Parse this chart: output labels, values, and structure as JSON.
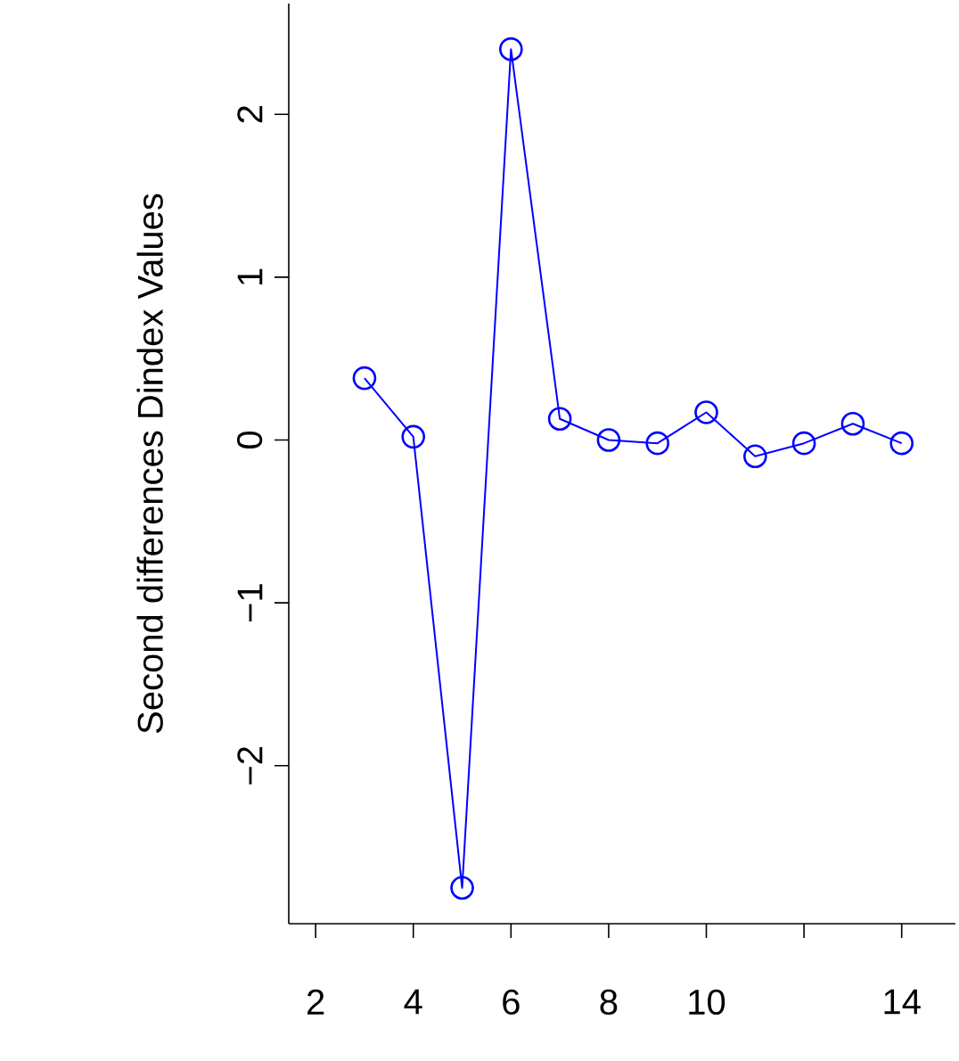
{
  "chart_data": {
    "type": "line",
    "ylabel": "Second differences Dindex Values",
    "x": [
      3,
      4,
      5,
      6,
      7,
      8,
      9,
      10,
      11,
      12,
      13,
      14
    ],
    "series": [
      {
        "color": "#0000ff",
        "values": [
          0.38,
          0.02,
          -2.75,
          2.4,
          0.13,
          0.0,
          -0.02,
          0.17,
          -0.1,
          -0.02,
          0.1,
          -0.02
        ]
      }
    ],
    "xlim": [
      1.45,
      15.1
    ],
    "ylim": [
      -2.97,
      2.68
    ],
    "xticks": [
      2,
      4,
      6,
      8,
      10,
      {
        "value": 12,
        "label": null
      },
      14
    ],
    "yticks": [
      {
        "value": -2,
        "label": "−2"
      },
      {
        "value": -1,
        "label": "−1"
      },
      0,
      1,
      2
    ],
    "marker": "circle",
    "line_style": "solid"
  }
}
